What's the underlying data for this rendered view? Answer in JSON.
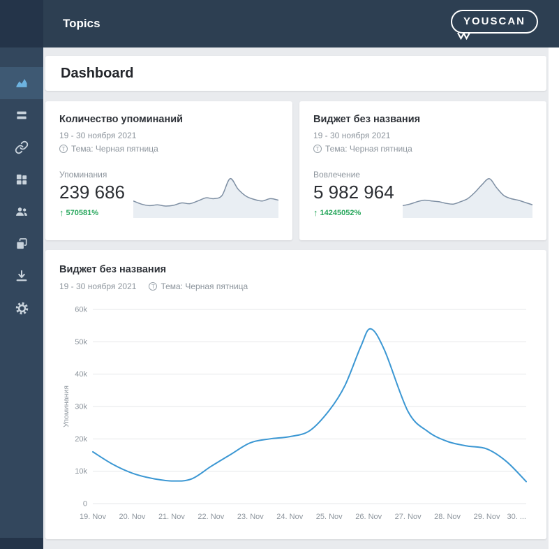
{
  "topbar": {
    "title": "Topics"
  },
  "logo": {
    "text": "YOUSCAN"
  },
  "sidebar": {
    "items": [
      {
        "id": "dashboard",
        "icon": "area-chart-icon",
        "active": true
      },
      {
        "id": "mentions-feed",
        "icon": "list-icon",
        "active": false
      },
      {
        "id": "links",
        "icon": "link-icon",
        "active": false
      },
      {
        "id": "widgets",
        "icon": "grid-icon",
        "active": false
      },
      {
        "id": "audience",
        "icon": "people-icon",
        "active": false
      },
      {
        "id": "reports",
        "icon": "copy-icon",
        "active": false
      },
      {
        "id": "export",
        "icon": "download-icon",
        "active": false
      },
      {
        "id": "settings",
        "icon": "gear-icon",
        "active": false
      }
    ]
  },
  "page": {
    "title": "Dashboard"
  },
  "icons": {
    "up_arrow": "↑",
    "topic_badge": "Т"
  },
  "stat_cards": [
    {
      "title": "Количество упоминаний",
      "period": "19 - 30 ноября 2021",
      "topic": "Тема: Черная пятница",
      "metric_label": "Упоминания",
      "metric_value": "239 686",
      "delta": "570581%",
      "spark": [
        38,
        30,
        26,
        28,
        25,
        27,
        33,
        31,
        38,
        46,
        44,
        52,
        95,
        68,
        50,
        42,
        38,
        44,
        40
      ]
    },
    {
      "title": "Виджет без названия",
      "period": "19 - 30 ноября 2021",
      "topic": "Тема: Черная пятница",
      "metric_label": "Вовлечение",
      "metric_value": "5 982 964",
      "delta": "14245052%",
      "spark": [
        26,
        30,
        36,
        40,
        38,
        36,
        32,
        30,
        36,
        44,
        60,
        80,
        95,
        72,
        52,
        44,
        40,
        34,
        28
      ]
    }
  ],
  "chart_card": {
    "title": "Виджет без названия",
    "period": "19 - 30 ноября 2021",
    "topic": "Тема: Черная пятница"
  },
  "chart_data": {
    "type": "line",
    "title": "Виджет без названия",
    "ylabel": "Упоминания",
    "ylim": [
      0,
      60000
    ],
    "yticks": [
      0,
      10000,
      20000,
      30000,
      40000,
      50000,
      60000
    ],
    "ytick_labels": [
      "0",
      "10k",
      "20k",
      "30k",
      "40k",
      "50k",
      "60k"
    ],
    "x_labels": [
      "19. Nov",
      "20. Nov",
      "21. Nov",
      "22. Nov",
      "23. Nov",
      "24. Nov",
      "25. Nov",
      "26. Nov",
      "27. Nov",
      "28. Nov",
      "29. Nov",
      "30. ..."
    ],
    "series": [
      {
        "name": "Упоминания",
        "points_day_value": [
          [
            0,
            16000
          ],
          [
            0.5,
            12200
          ],
          [
            1,
            9400
          ],
          [
            1.5,
            7800
          ],
          [
            2,
            7000
          ],
          [
            2.5,
            7600
          ],
          [
            3,
            11500
          ],
          [
            3.5,
            15200
          ],
          [
            4,
            18800
          ],
          [
            4.5,
            20000
          ],
          [
            5,
            20700
          ],
          [
            5.5,
            22500
          ],
          [
            6,
            28800
          ],
          [
            6.4,
            36500
          ],
          [
            6.8,
            48500
          ],
          [
            7.05,
            54000
          ],
          [
            7.4,
            47500
          ],
          [
            8,
            28500
          ],
          [
            8.5,
            22300
          ],
          [
            9,
            19200
          ],
          [
            9.5,
            17800
          ],
          [
            10,
            16900
          ],
          [
            10.5,
            13000
          ],
          [
            11,
            6800
          ]
        ]
      }
    ],
    "line_color": "#3b97d3",
    "grid": true,
    "legend": "none"
  },
  "colors": {
    "topbar": "#2d3f52",
    "sidebar": "#33475d",
    "sidebar_dark": "#243449",
    "active_item_bg": "#3e5973",
    "active_icon": "#6db3e0",
    "content_bg": "#e9ebee",
    "green": "#26a65b",
    "line_blue": "#3b97d3",
    "grid": "#e4e7ea",
    "axis_text": "#8d959d",
    "spark_stroke": "#7e8fa3",
    "spark_fill": "#e9eef3"
  }
}
